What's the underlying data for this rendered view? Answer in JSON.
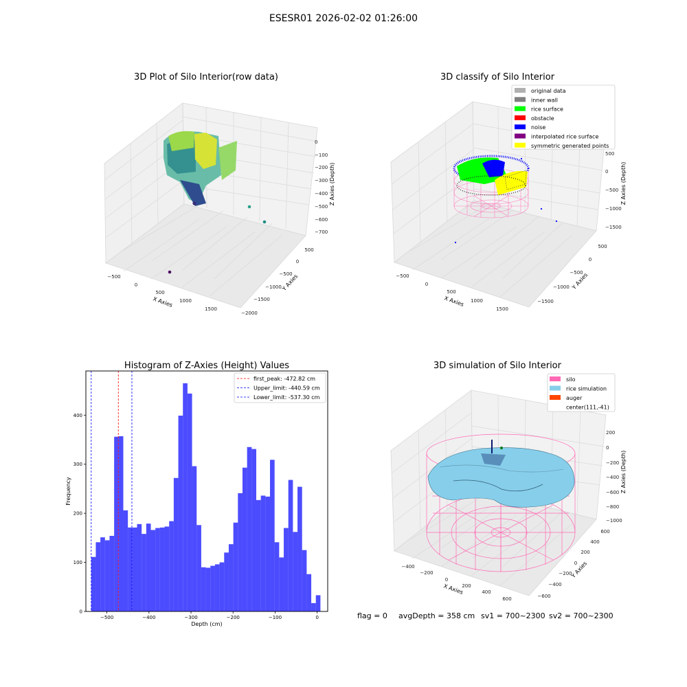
{
  "figure": {
    "suptitle": "ESESR01 2026-02-02 01:26:00",
    "footer": {
      "flag": "flag = 0",
      "avg": "avgDepth = 358 cm",
      "sv1": "sv1 = 700~2300",
      "sv2": "sv2 = 700~2300"
    }
  },
  "panels": {
    "p1": {
      "title": "3D Plot of Silo Interior(row data)",
      "xlabel": "X Axies",
      "ylabel": "Y Axies",
      "zlabel": "Z Axies (Depth)",
      "xticks": [
        "−500",
        "0",
        "500",
        "1000",
        "1500"
      ],
      "yticks": [
        "500",
        "0",
        "−500",
        "−1000",
        "−1500",
        "−2000"
      ],
      "zticks": [
        "0",
        "−100",
        "−200",
        "−300",
        "−400",
        "−500",
        "−600",
        "−700"
      ]
    },
    "p2": {
      "title": "3D classify of Silo Interior",
      "xlabel": "X Axies",
      "ylabel": "Y Axies",
      "zlabel": "Z Axies (Depth)",
      "xticks": [
        "−500",
        "0",
        "500",
        "1000",
        "1500"
      ],
      "yticks": [
        "500",
        "0",
        "−500",
        "−1000",
        "−1500"
      ],
      "zticks": [
        "500",
        "0",
        "−500",
        "−1000",
        "−1500"
      ],
      "legend": [
        {
          "label": "original data",
          "color": "#b0b0b0"
        },
        {
          "label": "inner wall",
          "color": "#808080"
        },
        {
          "label": "rice surface",
          "color": "#00ff00"
        },
        {
          "label": "obstacle",
          "color": "#ff0000"
        },
        {
          "label": "noise",
          "color": "#0000ff"
        },
        {
          "label": "interpolated rice surface",
          "color": "#800080"
        },
        {
          "label": "symmetric generated points",
          "color": "#ffff00"
        }
      ]
    },
    "p4": {
      "title": "3D simulation of Silo Interior",
      "xlabel": "X Axies",
      "ylabel": "Y Axies",
      "zlabel": "Z Axies (Depth)",
      "xticks": [
        "−400",
        "−200",
        "0",
        "200",
        "400",
        "600"
      ],
      "yticks": [
        "600",
        "400",
        "200",
        "0",
        "−200",
        "−400",
        "−600"
      ],
      "zticks": [
        "200",
        "0",
        "−200",
        "−400",
        "−600",
        "−800",
        "−1000"
      ],
      "legend": [
        {
          "label": "silo",
          "color": "#ff69b4"
        },
        {
          "label": "rice simulation",
          "color": "#87ceeb"
        },
        {
          "label": "auger",
          "color": "#ff4500"
        },
        {
          "label": "center(111,-41)",
          "color": ""
        }
      ]
    }
  },
  "chart_data": [
    {
      "type": "bar",
      "title": "Histogram of Z-Axies (Height) Values",
      "xlabel": "Depth (cm)",
      "ylabel": "Frequency",
      "bar_color": "#0000ff",
      "bar_alpha": 0.7,
      "xlim": [
        -550,
        25
      ],
      "ylim": [
        0,
        490
      ],
      "xticks": [
        -500,
        -400,
        -300,
        -200,
        -100,
        0
      ],
      "xtick_labels": [
        "−500",
        "−400",
        "−300",
        "−200",
        "−100",
        "0"
      ],
      "yticks": [
        0,
        100,
        200,
        300,
        400
      ],
      "yticks_labels": [
        "0",
        "100",
        "200",
        "300",
        "400"
      ],
      "bin_start": -537.3,
      "bin_width": 10.9,
      "values": [
        111,
        141,
        151,
        145,
        154,
        356,
        357,
        206,
        171,
        171,
        178,
        158,
        179,
        166,
        170,
        171,
        173,
        184,
        272,
        399,
        465,
        444,
        296,
        176,
        90,
        89,
        93,
        96,
        100,
        120,
        137,
        181,
        241,
        293,
        335,
        331,
        227,
        236,
        234,
        309,
        141,
        110,
        170,
        268,
        162,
        254,
        125,
        76,
        17,
        33
      ],
      "vlines": [
        {
          "x": -472.82,
          "label": "first_peak: -472.82 cm",
          "color": "#ff0000"
        },
        {
          "x": -440.59,
          "label": "Upper_limit: -440.59 cm",
          "color": "#0000ff"
        },
        {
          "x": -537.3,
          "label": "Lower_limit: -537.30 cm",
          "color": "#0000ff"
        }
      ]
    }
  ]
}
